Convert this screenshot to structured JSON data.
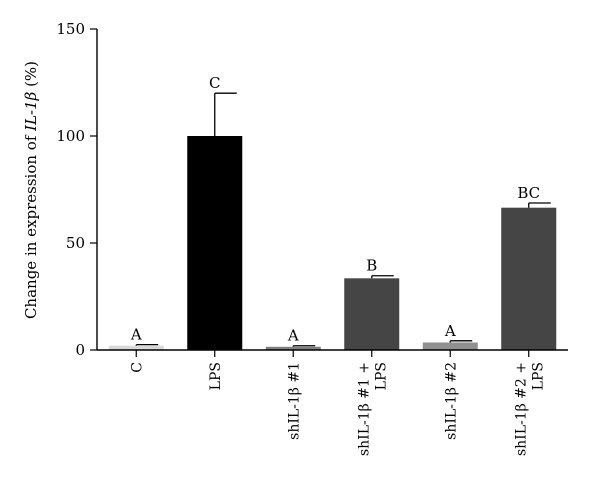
{
  "chart_data": {
    "type": "bar",
    "title": "",
    "xlabel": "",
    "ylabel": "Change in expression of IL-1β (%)",
    "ylabel_parts": {
      "prefix": "Change in expression of ",
      "gene": "IL-1β",
      "suffix": " (%)"
    },
    "ylim": [
      0,
      150
    ],
    "yticks": [
      "0",
      "50",
      "100",
      "150"
    ],
    "categories": [
      "C",
      "LPS",
      "shIL-1β #1",
      "shIL-1β #1 + LPS",
      "shIL-1β #2",
      "shIL-1β #2 + LPS"
    ],
    "category_lines": [
      [
        "C"
      ],
      [
        "LPS"
      ],
      [
        "shIL-1β #1"
      ],
      [
        "shIL-1β #1 +",
        "LPS"
      ],
      [
        "shIL-1β #2"
      ],
      [
        "shIL-1β #2 +",
        "LPS"
      ]
    ],
    "values": [
      2,
      100,
      1.5,
      33.5,
      3.5,
      66.5
    ],
    "errors": [
      0.5,
      20,
      0.5,
      1.2,
      0.8,
      2.2
    ],
    "significance": [
      "A",
      "C",
      "A",
      "B",
      "A",
      "BC"
    ],
    "colors": [
      "#d9d9d9",
      "#000000",
      "#808080",
      "#454545",
      "#909090",
      "#454545"
    ],
    "grid": false,
    "legend": "none"
  }
}
